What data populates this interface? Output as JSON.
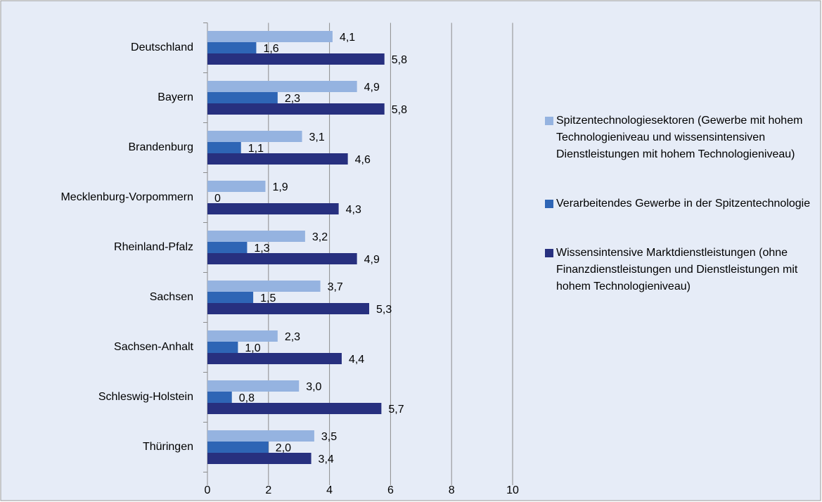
{
  "chart_data": {
    "type": "barh",
    "categories": [
      "Deutschland",
      "Bayern",
      "Brandenburg",
      "Mecklenburg-Vorpommern",
      "Rheinland-Pfalz",
      "Sachsen",
      "Sachsen-Anhalt",
      "Schleswig-Holstein",
      "Thüringen"
    ],
    "series": [
      {
        "name": "Spitzentechnologiesektoren (Gewerbe mit hohem Technologieniveau und wissensintensiven Dienstleistungen mit hohem Technologieniveau)",
        "color": "#95b3e0",
        "values": [
          4.1,
          4.9,
          3.1,
          1.9,
          3.2,
          3.7,
          2.3,
          3.0,
          3.5
        ],
        "value_labels": [
          "4,1",
          "4,9",
          "3,1",
          "1,9",
          "3,2",
          "3,7",
          "2,3",
          "3,0",
          "3,5"
        ]
      },
      {
        "name": "Verarbeitendes Gewerbe in der Spitzentechnologie",
        "color": "#2e65b5",
        "values": [
          1.6,
          2.3,
          1.1,
          0,
          1.3,
          1.5,
          1.0,
          0.8,
          2.0
        ],
        "value_labels": [
          "1,6",
          "2,3",
          "1,1",
          "0",
          "1,3",
          "1,5",
          "1,0",
          "0,8",
          "2,0"
        ]
      },
      {
        "name": "Wissensintensive Marktdienstleistungen (ohne Finanzdienstleistungen und Dienstleistungen mit hohem Technologieniveau)",
        "color": "#27307f",
        "values": [
          5.8,
          5.8,
          4.6,
          4.3,
          4.9,
          5.3,
          4.4,
          5.7,
          3.4
        ],
        "value_labels": [
          "5,8",
          "5,8",
          "4,6",
          "4,3",
          "4,9",
          "5,3",
          "4,4",
          "5,7",
          "3,4"
        ]
      }
    ],
    "xlim": [
      0,
      10
    ],
    "xticks": [
      0,
      2,
      4,
      6,
      8,
      10
    ],
    "grid": true,
    "legend": "right"
  }
}
